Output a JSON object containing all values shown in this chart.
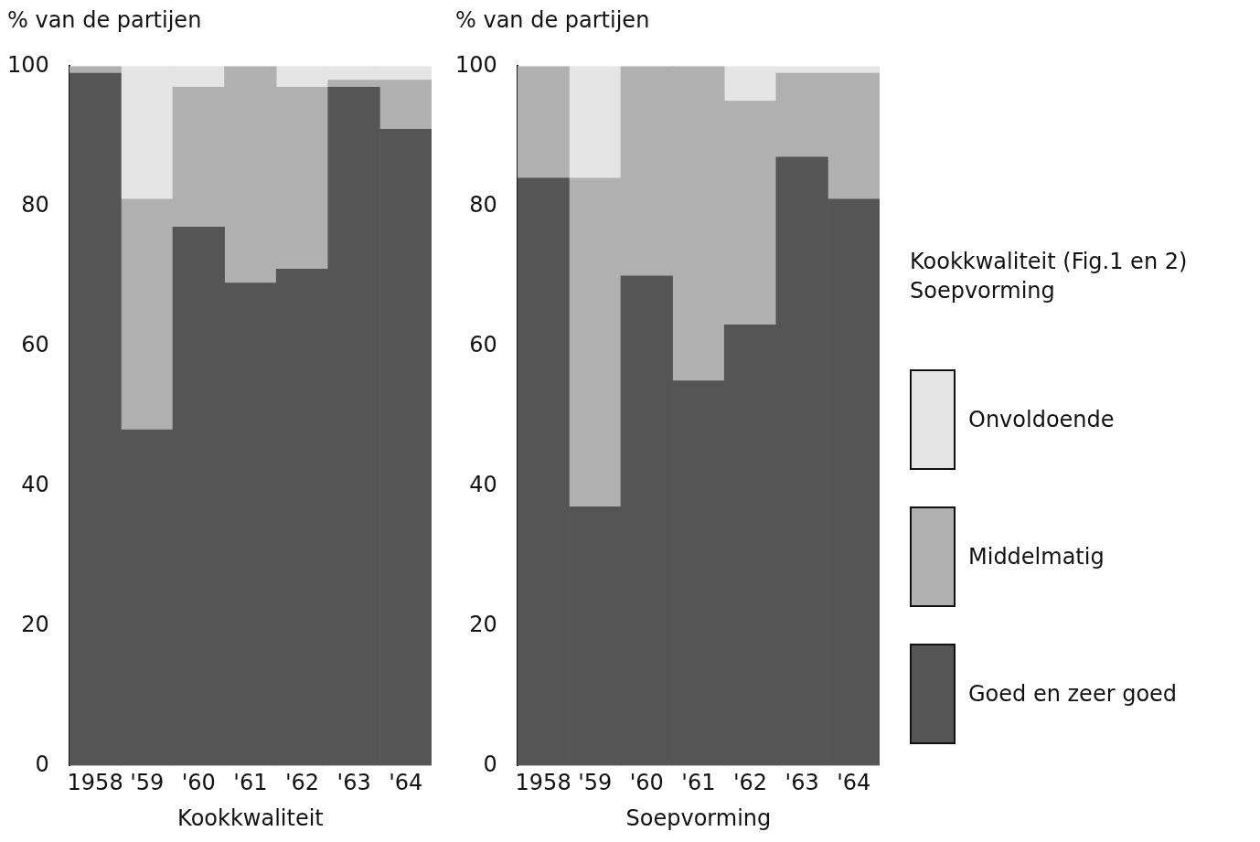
{
  "chart_data": [
    {
      "type": "bar",
      "stacked": true,
      "ylabel": "% van de partijen",
      "xlabel": "Kookkwaliteit",
      "categories": [
        "1958",
        "'59",
        "'60",
        "'61",
        "'62",
        "'63",
        "'64"
      ],
      "ylim": [
        0,
        100
      ],
      "yticks": [
        0,
        20,
        40,
        60,
        80,
        100
      ],
      "grid": false,
      "series": [
        {
          "color": "#555555",
          "values": [
            99,
            48,
            77,
            69,
            71,
            97,
            91
          ]
        },
        {
          "color": "#b0b0b0",
          "values": [
            1,
            33,
            20,
            31,
            26,
            1,
            7
          ]
        },
        {
          "color": "#e4e4e4",
          "values": [
            0,
            19,
            3,
            0,
            3,
            2,
            2
          ]
        }
      ]
    },
    {
      "type": "bar",
      "stacked": true,
      "ylabel": "% van de partijen",
      "xlabel": "Soepvorming",
      "categories": [
        "1958",
        "'59",
        "'60",
        "'61",
        "'62",
        "'63",
        "'64"
      ],
      "ylim": [
        0,
        100
      ],
      "yticks": [
        0,
        20,
        40,
        60,
        80,
        100
      ],
      "grid": false,
      "legend": "right",
      "legend_title": "Kookkwaliteit (Fig.1 en 2)\nSoepvorming",
      "series": [
        {
          "name": "Goed en zeer goed",
          "color": "#555555",
          "values": [
            84,
            37,
            70,
            55,
            63,
            87,
            81
          ]
        },
        {
          "name": "Middelmatig",
          "color": "#b0b0b0",
          "values": [
            16,
            47,
            30,
            45,
            32,
            12,
            18
          ]
        },
        {
          "name": "Onvoldoende",
          "color": "#e4e4e4",
          "values": [
            0,
            16,
            0,
            0,
            5,
            1,
            1
          ]
        }
      ]
    }
  ]
}
